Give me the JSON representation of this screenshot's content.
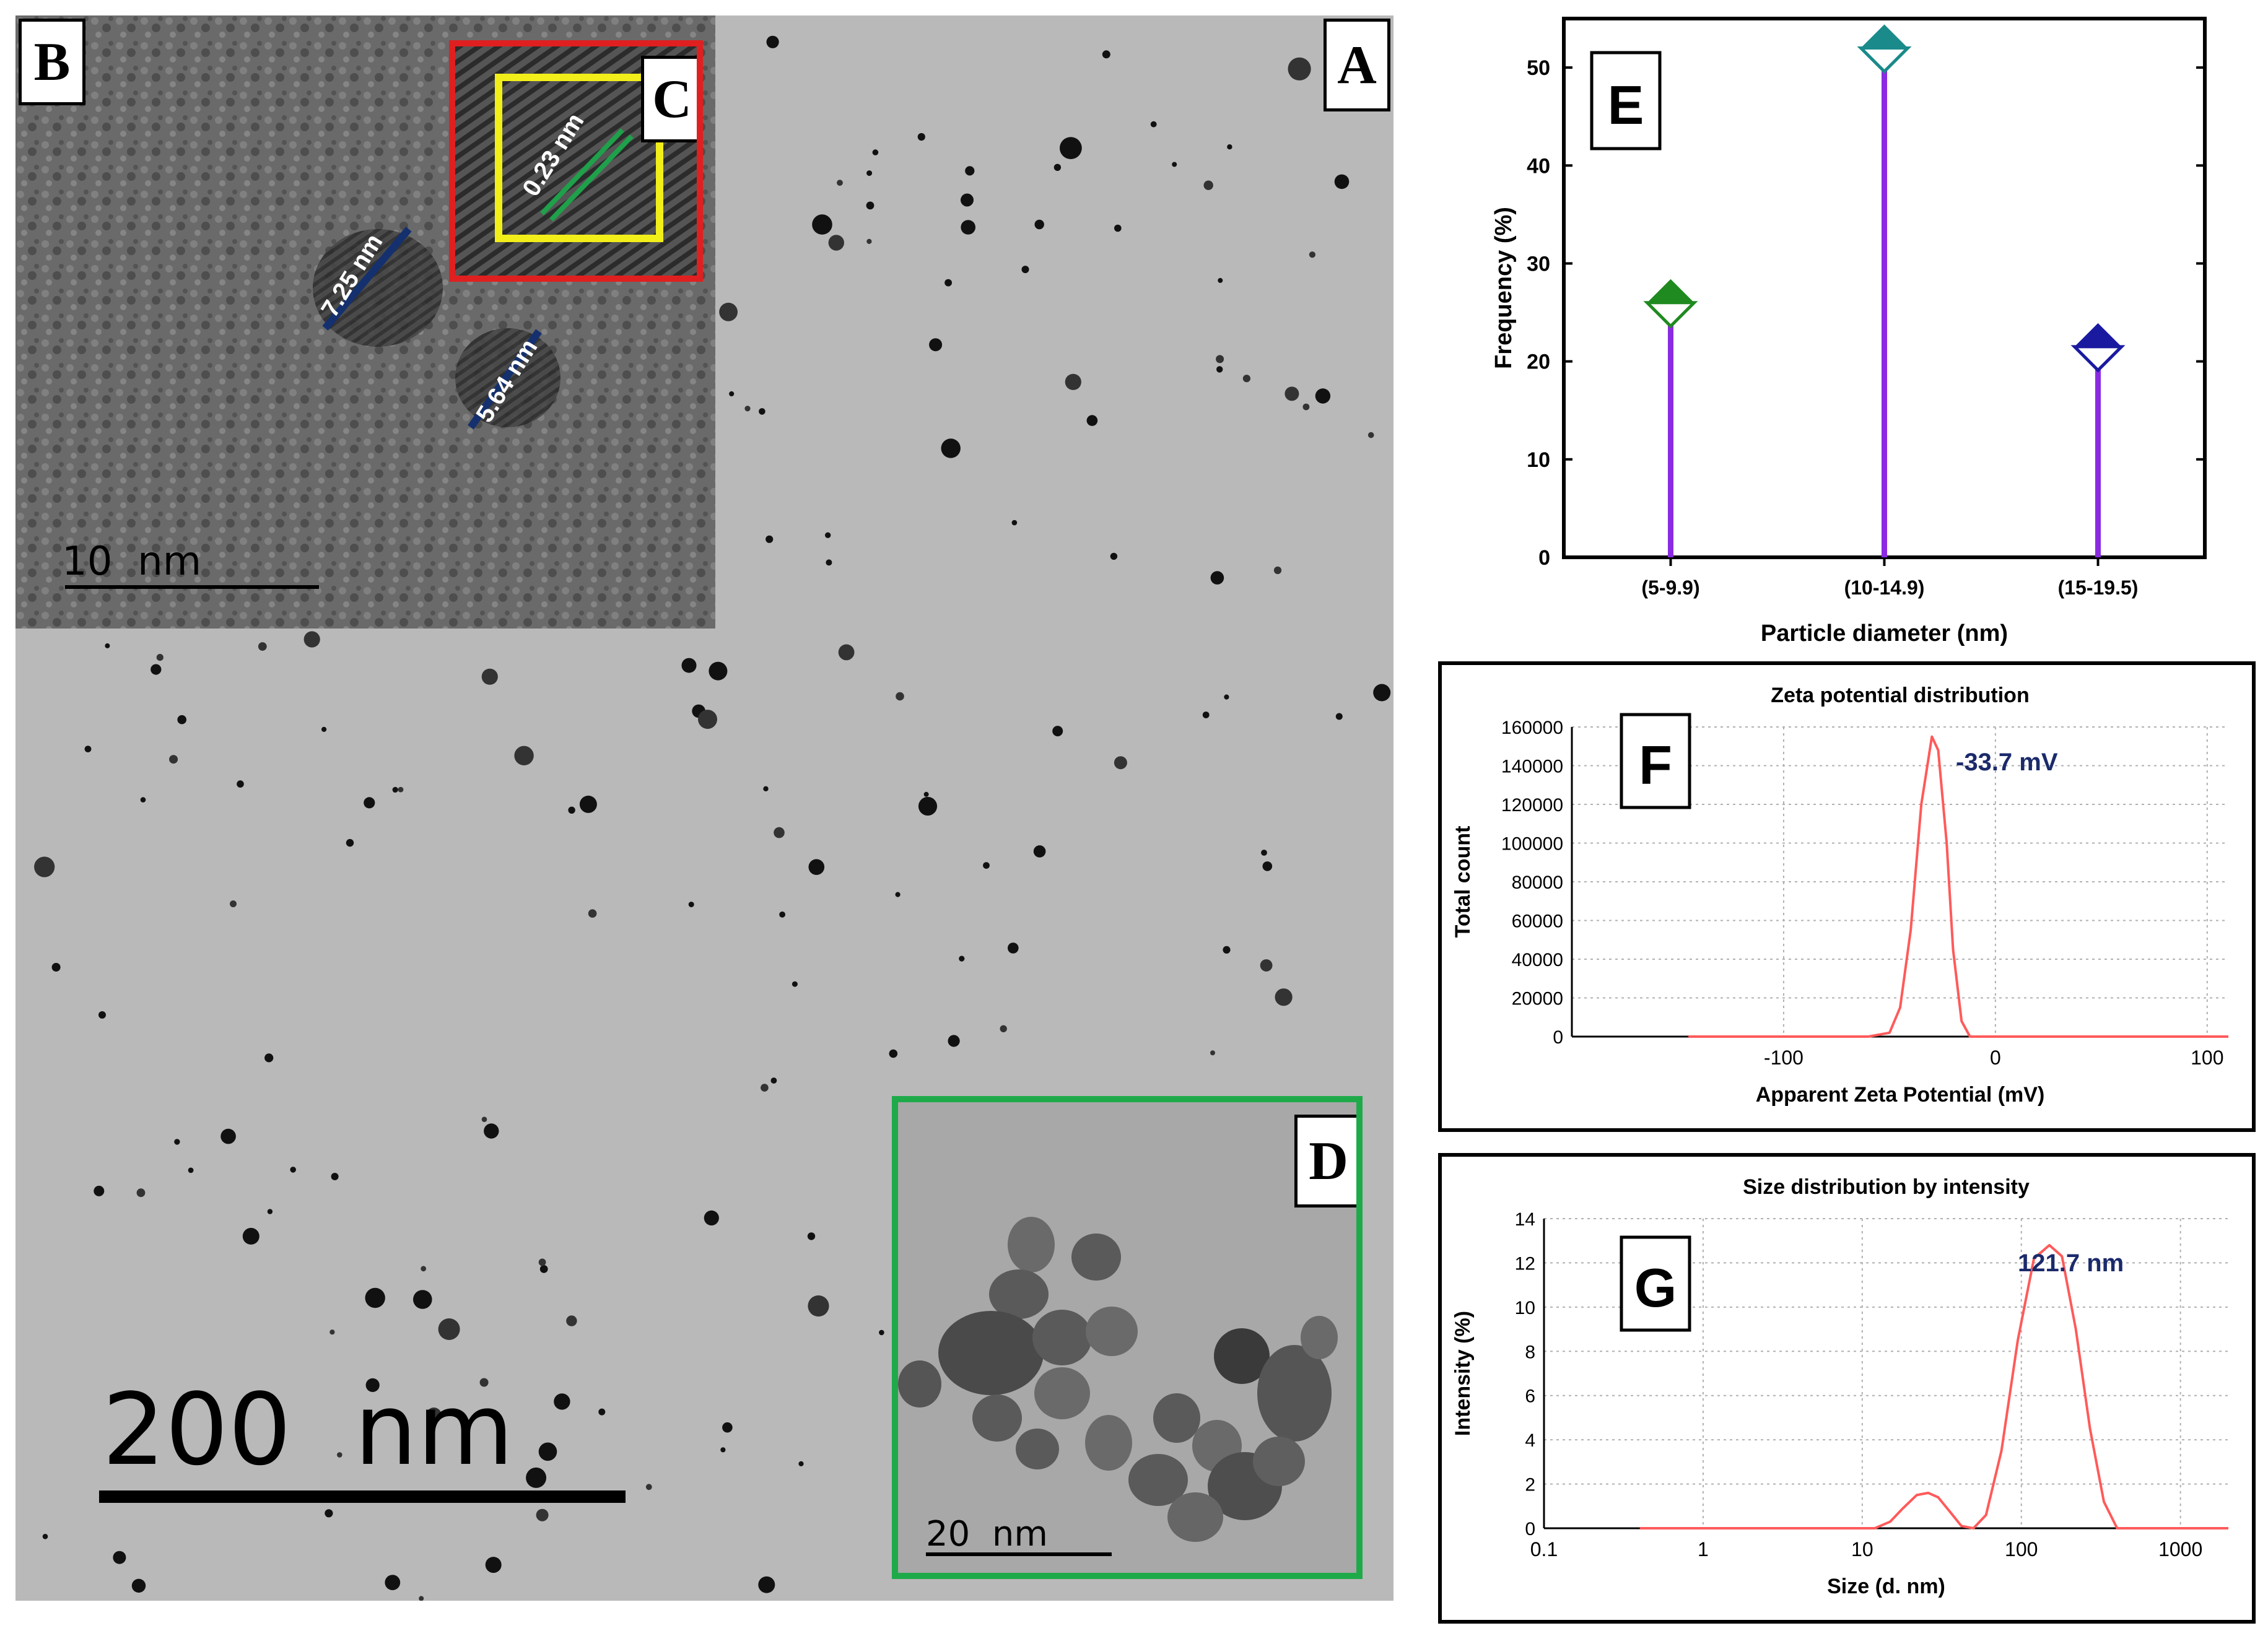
{
  "panels": {
    "A": {
      "label": "A",
      "scale_bar": "200  nm"
    },
    "B": {
      "label": "B",
      "scale_bar": "10  nm",
      "measure_1": "7.25 nm",
      "measure_2": "5.64 nm"
    },
    "C": {
      "label": "C",
      "spacing": "0.23 nm"
    },
    "D": {
      "label": "D",
      "scale_bar": "20  nm"
    },
    "E": {
      "label": "E"
    },
    "F": {
      "label": "F"
    },
    "G": {
      "label": "G"
    }
  },
  "colors": {
    "stem": "#8a2be2",
    "marker_1": "#1f8a1f",
    "marker_2": "#1a8a8a",
    "marker_3": "#1a1aa0",
    "curve": "#ff5a5a",
    "annotation": "#1b2a6b",
    "panel_C_frame": "#e02020",
    "panel_C_inner": "#f2ee1a",
    "panel_D_frame": "#1faa4a",
    "measure_line": "#14306e",
    "spacing_line": "#1fa04a"
  },
  "chart_data": [
    {
      "id": "E",
      "type": "scatter",
      "categories": [
        "(5-9.9)",
        "(10-14.9)",
        "(15-19.5)"
      ],
      "values": [
        26,
        52,
        21.5
      ],
      "xlabel": "Particle diameter (nm)",
      "ylabel": "Frequency (%)",
      "ylim": [
        0,
        55
      ],
      "yticks": [
        0,
        10,
        20,
        30,
        40,
        50
      ],
      "grid": false
    },
    {
      "id": "F",
      "type": "line",
      "title": "Zeta potential distribution",
      "xlabel": "Apparent Zeta Potential (mV)",
      "ylabel": "Total count",
      "xlim": [
        -200,
        110
      ],
      "ylim": [
        0,
        160000
      ],
      "xticks": [
        -100,
        0,
        100
      ],
      "yticks": [
        0,
        20000,
        40000,
        60000,
        80000,
        100000,
        120000,
        140000,
        160000
      ],
      "grid": true,
      "annotation": "-33.7 mV",
      "series": [
        {
          "x": [
            -145,
            -60,
            -50,
            -45,
            -40,
            -35,
            -30,
            -27,
            -23,
            -20,
            -16,
            -12,
            110
          ],
          "y": [
            0,
            0,
            2000,
            15000,
            55000,
            120000,
            155000,
            148000,
            100000,
            45000,
            8000,
            0,
            0
          ]
        }
      ]
    },
    {
      "id": "G",
      "type": "line",
      "title": "Size distribution by intensity",
      "xlabel": "Size (d. nm)",
      "ylabel": "Intensity (%)",
      "xscale": "log",
      "xlim": [
        0.1,
        2000
      ],
      "ylim": [
        0,
        14
      ],
      "xticks": [
        0.1,
        1,
        10,
        100,
        1000
      ],
      "yticks": [
        0,
        2,
        4,
        6,
        8,
        10,
        12,
        14
      ],
      "grid": true,
      "annotation": "121.7 nm",
      "series": [
        {
          "x": [
            0.4,
            12,
            15,
            18,
            22,
            26,
            30,
            36,
            42,
            50,
            60,
            75,
            95,
            120,
            150,
            180,
            220,
            270,
            330,
            400,
            2000
          ],
          "y": [
            0,
            0,
            0.3,
            0.9,
            1.5,
            1.6,
            1.4,
            0.7,
            0.1,
            0,
            0.6,
            3.5,
            8.5,
            12.2,
            12.8,
            12.3,
            9.0,
            4.5,
            1.2,
            0,
            0
          ]
        }
      ]
    }
  ]
}
